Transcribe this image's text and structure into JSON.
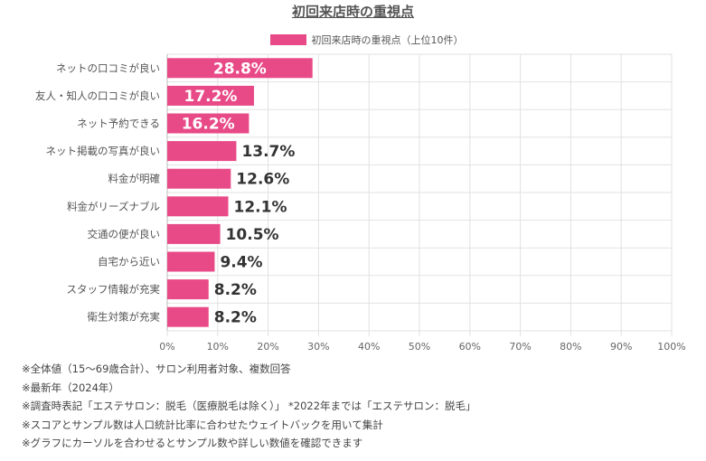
{
  "chart_data": {
    "type": "bar",
    "orientation": "horizontal",
    "title": "初回来店時の重視点",
    "legend": {
      "label": "初回来店時の重視点（上位10件）",
      "position": "top"
    },
    "categories": [
      "ネットの口コミが良い",
      "友人・知人の口コミが良い",
      "ネット予約できる",
      "ネット掲載の写真が良い",
      "料金が明確",
      "料金がリーズナブル",
      "交通の便が良い",
      "自宅から近い",
      "スタッフ情報が充実",
      "衛生対策が充実"
    ],
    "values": [
      28.8,
      17.2,
      16.2,
      13.7,
      12.6,
      12.1,
      10.5,
      9.4,
      8.2,
      8.2
    ],
    "value_labels": [
      "28.8%",
      "17.2%",
      "16.2%",
      "13.7%",
      "12.6%",
      "12.1%",
      "10.5%",
      "9.4%",
      "8.2%",
      "8.2%"
    ],
    "xlim": [
      0,
      100
    ],
    "xticks": [
      "0%",
      "10%",
      "20%",
      "30%",
      "40%",
      "50%",
      "60%",
      "70%",
      "80%",
      "90%",
      "100%"
    ],
    "grid": true,
    "bar_color": "#e84a87"
  },
  "notes": [
    "※全体値（15～69歳合計）、サロン利用者対象、複数回答",
    "※最新年（2024年）",
    "※調査時表記「エステサロン：脱毛（医療脱毛は除く）」 *2022年までは「エステサロン：脱毛」",
    "※スコアとサンプル数は人口統計比率に合わせたウェイトバックを用いて集計",
    "※グラフにカーソルを合わせるとサンプル数や詳しい数値を確認できます"
  ]
}
